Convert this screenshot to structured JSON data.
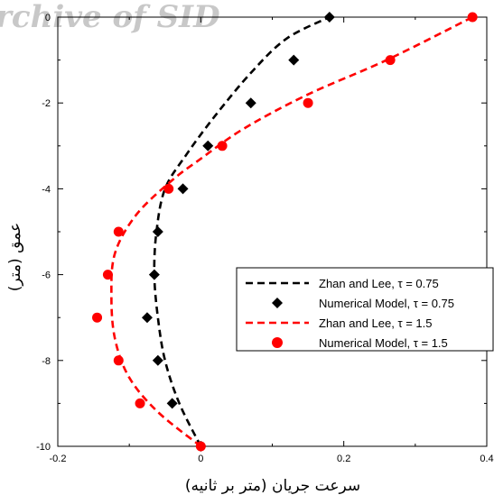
{
  "watermark": "rchive of SID",
  "chart_data": {
    "type": "scatter",
    "xlabel": "سرعت جريان (متر بر ثانيه)",
    "ylabel": "عمق (متر)",
    "xlim": [
      -0.2,
      0.4
    ],
    "ylim": [
      -10,
      0
    ],
    "xticks": [
      -0.2,
      0,
      0.2,
      0.4
    ],
    "xtick_labels": [
      "-0.2",
      "0",
      "0.2",
      "0.4"
    ],
    "yticks": [
      0,
      -2,
      -4,
      -6,
      -8,
      -10
    ],
    "ytick_labels": [
      "0",
      "-2",
      "-4",
      "-6",
      "-8",
      "-10"
    ],
    "legend_position": "right-middle",
    "series": [
      {
        "name": "Zhan and Lee, τ = 0.75",
        "kind": "line",
        "style": "dashed",
        "color": "#000000",
        "x": [
          0.0,
          -0.03,
          -0.05,
          -0.06,
          -0.065,
          -0.062,
          -0.05,
          -0.02,
          0.02,
          0.07,
          0.12,
          0.18
        ],
        "y": [
          -10,
          -9,
          -8,
          -7,
          -6,
          -5,
          -4,
          -3.2,
          -2.3,
          -1.3,
          -0.5,
          0
        ]
      },
      {
        "name": "Numerical Model, τ = 0.75",
        "kind": "markers",
        "marker": "diamond",
        "color": "#000000",
        "x": [
          0.0,
          -0.04,
          -0.06,
          -0.075,
          -0.065,
          -0.06,
          -0.025,
          0.01,
          0.07,
          0.13,
          0.18
        ],
        "y": [
          -10,
          -9,
          -8,
          -7,
          -6,
          -5,
          -4,
          -3,
          -2,
          -1,
          0
        ]
      },
      {
        "name": "Zhan and Lee, τ = 1.5",
        "kind": "line",
        "style": "dashed",
        "color": "#ff0000",
        "x": [
          0.0,
          -0.06,
          -0.1,
          -0.12,
          -0.125,
          -0.12,
          -0.09,
          -0.04,
          0.0,
          0.06,
          0.15,
          0.26,
          0.38
        ],
        "y": [
          -10,
          -9.2,
          -8.4,
          -7.5,
          -6.5,
          -5.5,
          -4.6,
          -3.8,
          -3.3,
          -2.6,
          -1.8,
          -1,
          0
        ]
      },
      {
        "name": "Numerical Model, τ = 1.5",
        "kind": "markers",
        "marker": "circle",
        "color": "#ff0000",
        "x": [
          0.0,
          -0.085,
          -0.115,
          -0.145,
          -0.13,
          -0.115,
          -0.045,
          0.03,
          0.15,
          0.265,
          0.38
        ],
        "y": [
          -10,
          -9,
          -8,
          -7,
          -6,
          -5,
          -4,
          -3,
          -2,
          -1,
          0
        ]
      }
    ]
  }
}
